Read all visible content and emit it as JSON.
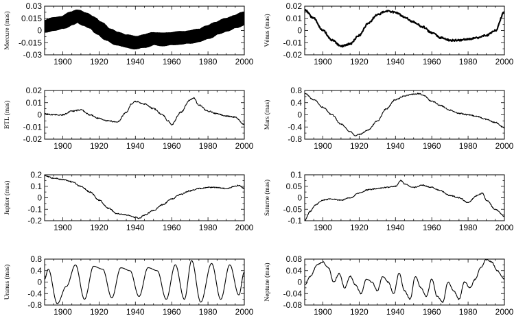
{
  "chart_data": [
    {
      "type": "line",
      "ylabel": "Mercure (mas)",
      "xlim": [
        1890,
        2000
      ],
      "ylim": [
        -0.03,
        0.03
      ],
      "yticks": [
        -0.03,
        -0.015,
        0,
        0.015,
        0.03
      ],
      "ytick_labels": [
        "-0.03",
        "-0.015",
        "0",
        "0.015",
        "0.03"
      ],
      "xticks": [
        1900,
        1920,
        1940,
        1960,
        1980,
        2000
      ],
      "xtick_labels": [
        "1900",
        "1920",
        "1940",
        "1960",
        "1980",
        "2000"
      ],
      "line_width_mas": 0.012,
      "series": [
        {
          "x": [
            1890,
            1895,
            1900,
            1905,
            1908,
            1912,
            1916,
            1920,
            1925,
            1930,
            1935,
            1940,
            1945,
            1950,
            1955,
            1960,
            1965,
            1970,
            1975,
            1980,
            1985,
            1990,
            1995,
            2000
          ],
          "y": [
            0.005,
            0.008,
            0.01,
            0.015,
            0.018,
            0.014,
            0.01,
            0.003,
            -0.005,
            -0.01,
            -0.013,
            -0.015,
            -0.013,
            -0.01,
            -0.011,
            -0.01,
            -0.009,
            -0.008,
            -0.006,
            -0.002,
            0.003,
            0.007,
            0.011,
            0.015
          ]
        }
      ]
    },
    {
      "type": "line",
      "ylabel": "Vénus (mas)",
      "xlim": [
        1890,
        2000
      ],
      "ylim": [
        -0.02,
        0.02
      ],
      "yticks": [
        -0.02,
        -0.01,
        0,
        0.01,
        0.02
      ],
      "ytick_labels": [
        "-0.02",
        "-0.01",
        "0",
        "0.01",
        "0.02"
      ],
      "xticks": [
        1900,
        1920,
        1940,
        1960,
        1980,
        2000
      ],
      "xtick_labels": [
        "1900",
        "1920",
        "1940",
        "1960",
        "1980",
        "2000"
      ],
      "line_width_mas": 0.0012,
      "series": [
        {
          "x": [
            1890,
            1895,
            1900,
            1905,
            1910,
            1915,
            1920,
            1925,
            1930,
            1935,
            1940,
            1945,
            1950,
            1955,
            1960,
            1965,
            1970,
            1975,
            1980,
            1985,
            1990,
            1995,
            2000
          ],
          "y": [
            0.017,
            0.01,
            0.0,
            -0.008,
            -0.013,
            -0.011,
            -0.004,
            0.006,
            0.013,
            0.016,
            0.015,
            0.011,
            0.007,
            0.003,
            -0.002,
            -0.006,
            -0.008,
            -0.008,
            -0.007,
            -0.006,
            -0.004,
            0.0,
            0.015
          ]
        }
      ]
    },
    {
      "type": "line",
      "ylabel": "BTL (mas)",
      "xlim": [
        1890,
        2000
      ],
      "ylim": [
        -0.02,
        0.02
      ],
      "yticks": [
        -0.02,
        -0.01,
        0,
        0.01,
        0.02
      ],
      "ytick_labels": [
        "-0.02",
        "-0.01",
        "0",
        "0.01",
        "0.02"
      ],
      "xticks": [
        1900,
        1920,
        1940,
        1960,
        1980,
        2000
      ],
      "xtick_labels": [
        "1900",
        "1920",
        "1940",
        "1960",
        "1980",
        "2000"
      ],
      "series": [
        {
          "x": [
            1890,
            1895,
            1900,
            1905,
            1910,
            1915,
            1920,
            1925,
            1930,
            1935,
            1938,
            1940,
            1945,
            1950,
            1955,
            1958,
            1960,
            1965,
            1970,
            1972,
            1975,
            1980,
            1985,
            1990,
            1995,
            2000
          ],
          "y": [
            0.001,
            0.0,
            0.0,
            0.003,
            0.004,
            0.0,
            -0.003,
            -0.005,
            -0.006,
            0.002,
            0.009,
            0.011,
            0.009,
            0.005,
            0.0,
            -0.005,
            -0.008,
            0.002,
            0.012,
            0.014,
            0.008,
            0.003,
            0.001,
            -0.001,
            -0.002,
            -0.008
          ]
        }
      ]
    },
    {
      "type": "line",
      "ylabel": "Mars (mas)",
      "xlim": [
        1890,
        2000
      ],
      "ylim": [
        -0.8,
        0.8
      ],
      "yticks": [
        -0.8,
        -0.4,
        0,
        0.4,
        0.8
      ],
      "ytick_labels": [
        "-0.8",
        "-0.4",
        "0",
        "0.4",
        "0.8"
      ],
      "xticks": [
        1900,
        1920,
        1940,
        1960,
        1980,
        2000
      ],
      "xtick_labels": [
        "1900",
        "1920",
        "1940",
        "1960",
        "1980",
        "2000"
      ],
      "series": [
        {
          "x": [
            1890,
            1895,
            1900,
            1905,
            1910,
            1915,
            1918,
            1920,
            1925,
            1930,
            1935,
            1940,
            1945,
            1950,
            1953,
            1955,
            1960,
            1965,
            1970,
            1975,
            1980,
            1985,
            1990,
            1995,
            2000
          ],
          "y": [
            0.7,
            0.5,
            0.25,
            0.0,
            -0.3,
            -0.55,
            -0.68,
            -0.65,
            -0.5,
            -0.2,
            0.2,
            0.5,
            0.62,
            0.68,
            0.7,
            0.65,
            0.45,
            0.3,
            0.15,
            0.05,
            0.0,
            -0.05,
            -0.15,
            -0.25,
            -0.42
          ]
        }
      ]
    },
    {
      "type": "line",
      "ylabel": "Jupiter (mas)",
      "xlim": [
        1890,
        2000
      ],
      "ylim": [
        -0.2,
        0.2
      ],
      "yticks": [
        -0.2,
        -0.1,
        0,
        0.1,
        0.2
      ],
      "ytick_labels": [
        "-0.2",
        "-0.1",
        "0",
        "0.1",
        "0.2"
      ],
      "xticks": [
        1900,
        1920,
        1940,
        1960,
        1980,
        2000
      ],
      "xtick_labels": [
        "1900",
        "1920",
        "1940",
        "1960",
        "1980",
        "2000"
      ],
      "series": [
        {
          "x": [
            1890,
            1895,
            1900,
            1905,
            1910,
            1915,
            1920,
            1925,
            1930,
            1935,
            1940,
            1942,
            1945,
            1950,
            1955,
            1960,
            1965,
            1970,
            1975,
            1980,
            1985,
            1990,
            1995,
            1997,
            2000
          ],
          "y": [
            0.19,
            0.17,
            0.16,
            0.14,
            0.1,
            0.05,
            -0.02,
            -0.09,
            -0.14,
            -0.15,
            -0.17,
            -0.18,
            -0.15,
            -0.11,
            -0.06,
            -0.01,
            0.03,
            0.06,
            0.08,
            0.09,
            0.09,
            0.08,
            0.1,
            0.11,
            0.08
          ]
        }
      ]
    },
    {
      "type": "line",
      "ylabel": "Saturne (mas)",
      "xlim": [
        1890,
        2000
      ],
      "ylim": [
        -0.1,
        0.1
      ],
      "yticks": [
        -0.1,
        -0.05,
        0,
        0.05,
        0.1
      ],
      "ytick_labels": [
        "-0.1",
        "-0.05",
        "0",
        "0.05",
        "0.1"
      ],
      "xticks": [
        1900,
        1920,
        1940,
        1960,
        1980,
        2000
      ],
      "xtick_labels": [
        "1900",
        "1920",
        "1940",
        "1960",
        "1980",
        "2000"
      ],
      "series": [
        {
          "x": [
            1890,
            1893,
            1896,
            1900,
            1905,
            1910,
            1915,
            1920,
            1925,
            1930,
            1935,
            1940,
            1943,
            1945,
            1950,
            1955,
            1960,
            1965,
            1970,
            1975,
            1980,
            1985,
            1988,
            1990,
            1995,
            2000
          ],
          "y": [
            -0.1,
            -0.06,
            -0.03,
            -0.01,
            -0.005,
            -0.01,
            0.0,
            0.02,
            0.035,
            0.04,
            0.045,
            0.05,
            0.075,
            0.06,
            0.045,
            0.055,
            0.045,
            0.03,
            0.01,
            0.0,
            -0.02,
            0.01,
            0.02,
            -0.01,
            -0.05,
            -0.08
          ]
        }
      ]
    },
    {
      "type": "line",
      "ylabel": "Uranus (mas)",
      "xlim": [
        1890,
        2000
      ],
      "ylim": [
        -0.8,
        0.8
      ],
      "yticks": [
        -0.8,
        -0.4,
        0,
        0.4,
        0.8
      ],
      "ytick_labels": [
        "-0.8",
        "-0.4",
        "0",
        "0.4",
        "0.8"
      ],
      "xticks": [
        1900,
        1920,
        1940,
        1960,
        1980,
        2000
      ],
      "xtick_labels": [
        "1900",
        "1920",
        "1940",
        "1960",
        "1980",
        "2000"
      ],
      "series": [
        {
          "x": [
            1890,
            1892,
            1897,
            1902,
            1907,
            1912,
            1917,
            1922,
            1927,
            1932,
            1937,
            1942,
            1947,
            1952,
            1957,
            1962,
            1967,
            1971,
            1976,
            1982,
            1987,
            1992,
            1997,
            2000
          ],
          "y": [
            0.1,
            0.45,
            -0.75,
            -0.15,
            0.6,
            -0.6,
            0.55,
            0.45,
            -0.55,
            0.5,
            0.4,
            -0.5,
            0.5,
            0.4,
            -0.6,
            0.6,
            -0.6,
            0.75,
            -0.7,
            0.65,
            -0.6,
            0.6,
            -0.45,
            0.35
          ]
        }
      ]
    },
    {
      "type": "line",
      "ylabel": "Neptune (mas)",
      "xlim": [
        1890,
        2000
      ],
      "ylim": [
        -0.08,
        0.08
      ],
      "yticks": [
        -0.08,
        -0.04,
        0,
        0.04,
        0.08
      ],
      "ytick_labels": [
        "-0.08",
        "-0.04",
        "0",
        "0.04",
        "0.08"
      ],
      "xticks": [
        1900,
        1920,
        1940,
        1960,
        1980,
        2000
      ],
      "xtick_labels": [
        "1900",
        "1920",
        "1940",
        "1960",
        "1980",
        "2000"
      ],
      "series": [
        {
          "x": [
            1890,
            1893,
            1897,
            1900,
            1903,
            1906,
            1909,
            1912,
            1915,
            1918,
            1921,
            1924,
            1927,
            1930,
            1933,
            1936,
            1939,
            1942,
            1945,
            1948,
            1951,
            1954,
            1957,
            1960,
            1963,
            1966,
            1969,
            1972,
            1975,
            1978,
            1981,
            1984,
            1987,
            1990,
            1993,
            1996,
            2000
          ],
          "y": [
            -0.01,
            0.02,
            0.06,
            0.07,
            0.05,
            0.0,
            0.03,
            -0.02,
            0.02,
            -0.01,
            -0.04,
            0.01,
            0.0,
            -0.03,
            0.02,
            0.0,
            -0.04,
            0.03,
            -0.03,
            -0.06,
            0.02,
            -0.02,
            -0.05,
            0.01,
            -0.05,
            -0.07,
            0.0,
            -0.03,
            -0.06,
            0.0,
            -0.02,
            0.01,
            0.05,
            0.08,
            0.07,
            0.04,
            0.01
          ]
        }
      ]
    }
  ]
}
